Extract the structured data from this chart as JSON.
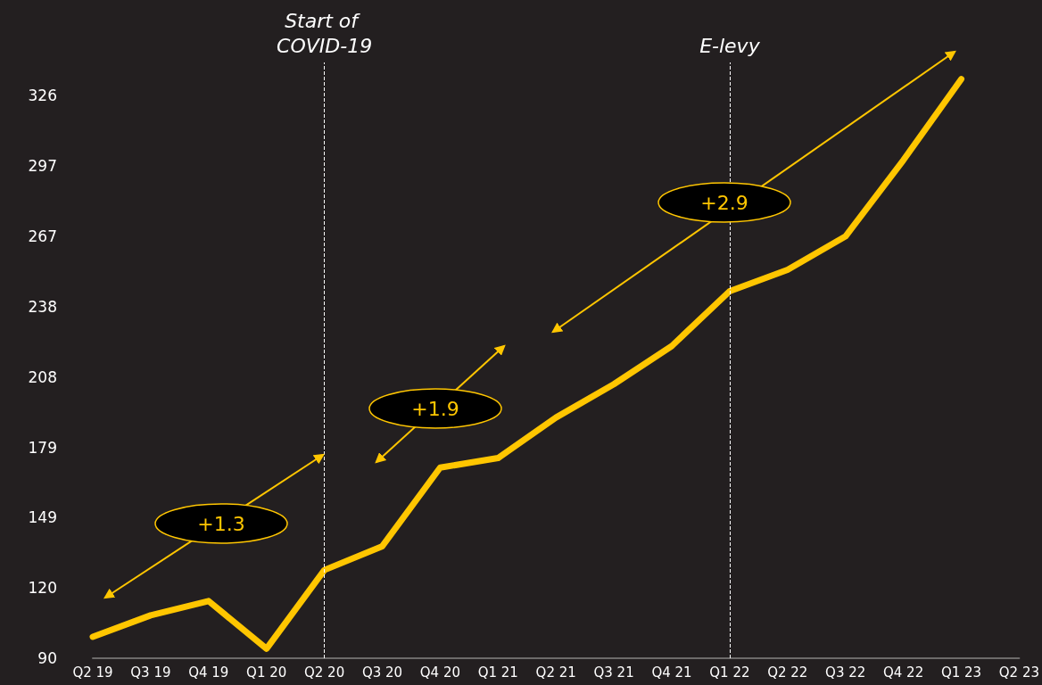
{
  "chart_data": {
    "type": "line",
    "categories": [
      "Q2 19",
      "Q3 19",
      "Q4 19",
      "Q1 20",
      "Q2 20",
      "Q3 20",
      "Q4 20",
      "Q1 21",
      "Q2 21",
      "Q3 21",
      "Q4 21",
      "Q1 22",
      "Q2 22",
      "Q3 22",
      "Q4 22",
      "Q1 23",
      "Q2 23"
    ],
    "series": [
      {
        "color": "#ffc600",
        "values": [
          99,
          108,
          114,
          94,
          127,
          137,
          170,
          174,
          191,
          205,
          221,
          244,
          253,
          267,
          299,
          333,
          null
        ]
      }
    ],
    "ylim": [
      90,
      340
    ],
    "yticks": [
      90,
      {
        "value": 119.5,
        "label": "120"
      },
      149,
      {
        "value": 178.5,
        "label": "179"
      },
      208,
      {
        "value": 237.5,
        "label": "238"
      },
      267,
      {
        "value": 296.5,
        "label": "297"
      },
      326
    ],
    "ref_lines": [
      {
        "axis": "x",
        "value": "Q2 20",
        "label": "Start of COVID-19",
        "color": "#ffffff",
        "line_style": "dashed"
      },
      {
        "axis": "x",
        "value": "Q1 22",
        "label": "E-levy",
        "color": "#ffffff",
        "line_style": "dashed"
      }
    ],
    "annotations": [
      "+1.3",
      "+1.9",
      "+2.9"
    ],
    "marker": "none",
    "line_style": "solid"
  }
}
